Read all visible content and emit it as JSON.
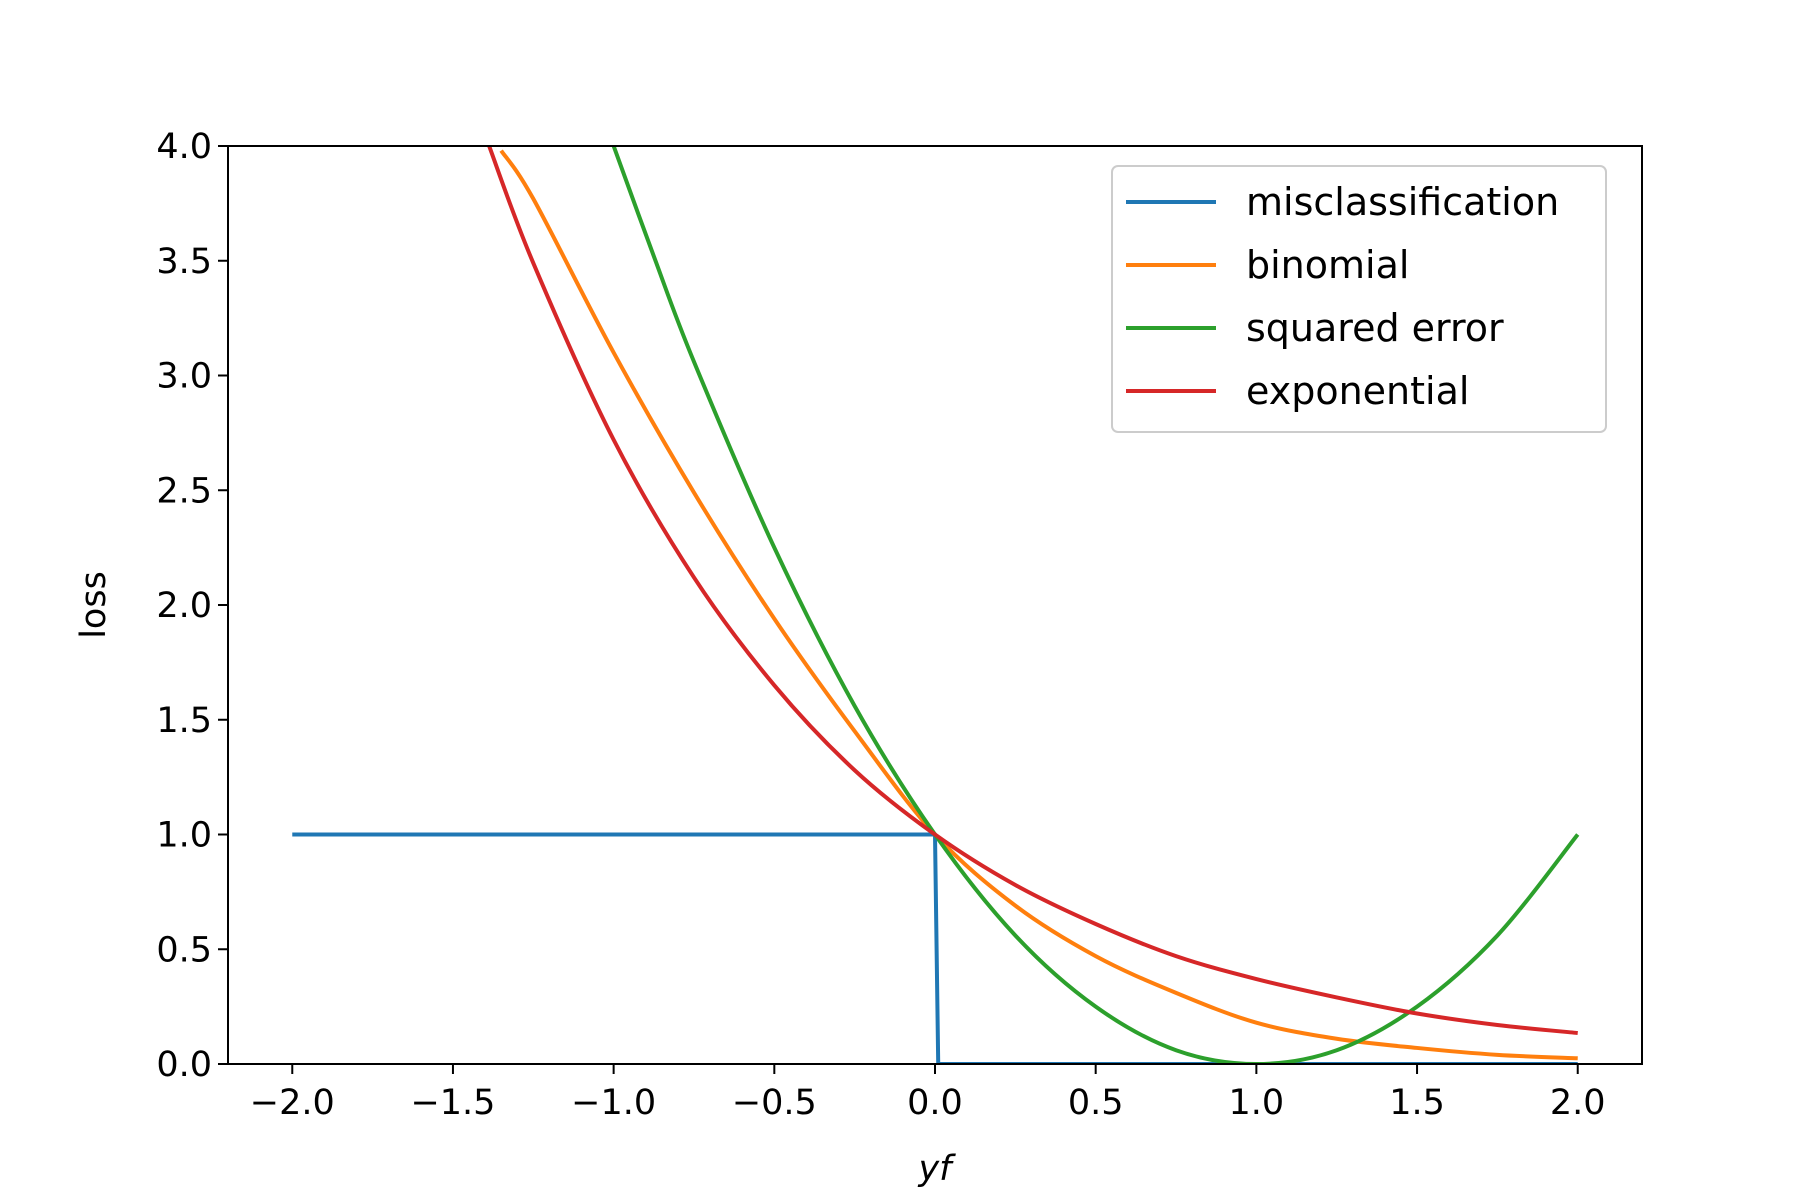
{
  "chart_data": {
    "type": "line",
    "title": "",
    "xlabel": "yf",
    "ylabel": "loss",
    "xlim": [
      -2.2,
      2.2
    ],
    "ylim": [
      0.0,
      4.0
    ],
    "xticks": [
      "−2.0",
      "−1.5",
      "−1.0",
      "−0.5",
      "0.0",
      "0.5",
      "1.0",
      "1.5",
      "2.0"
    ],
    "xtick_values": [
      -2.0,
      -1.5,
      -1.0,
      -0.5,
      0.0,
      0.5,
      1.0,
      1.5,
      2.0
    ],
    "yticks": [
      "0.0",
      "0.5",
      "1.0",
      "1.5",
      "2.0",
      "2.5",
      "3.0",
      "3.5",
      "4.0"
    ],
    "ytick_values": [
      0.0,
      0.5,
      1.0,
      1.5,
      2.0,
      2.5,
      3.0,
      3.5,
      4.0
    ],
    "grid": false,
    "legend_position": "top-right",
    "series": [
      {
        "name": "misclassification",
        "color": "#1f77b4",
        "x": [
          -2.0,
          -1.5,
          -1.0,
          -0.5,
          0.0,
          0.01,
          0.5,
          1.0,
          1.5,
          2.0
        ],
        "y": [
          1,
          1,
          1,
          1,
          1,
          0,
          0,
          0,
          0,
          0
        ]
      },
      {
        "name": "binomial",
        "color": "#ff7f0e",
        "x": [
          -1.35,
          -1.25,
          -1.0,
          -0.75,
          -0.5,
          -0.25,
          0.0,
          0.25,
          0.5,
          0.75,
          1.0,
          1.25,
          1.5,
          1.75,
          2.0
        ],
        "y": [
          3.98,
          3.77,
          3.1,
          2.49,
          1.94,
          1.45,
          1.0,
          0.69,
          0.47,
          0.31,
          0.18,
          0.11,
          0.07,
          0.04,
          0.025
        ]
      },
      {
        "name": "squared error",
        "color": "#2ca02c",
        "x": [
          -1.0,
          -0.875,
          -0.75,
          -0.5,
          -0.25,
          0.0,
          0.25,
          0.5,
          0.75,
          1.0,
          1.25,
          1.5,
          1.75,
          2.0
        ],
        "y": [
          4.0,
          3.52,
          3.06,
          2.25,
          1.56,
          1.0,
          0.56,
          0.25,
          0.06,
          0.0,
          0.06,
          0.25,
          0.56,
          1.0
        ]
      },
      {
        "name": "exponential",
        "color": "#d62728",
        "x": [
          -1.39,
          -1.25,
          -1.0,
          -0.75,
          -0.5,
          -0.25,
          0.0,
          0.25,
          0.5,
          0.75,
          1.0,
          1.25,
          1.5,
          1.75,
          2.0
        ],
        "y": [
          4.01,
          3.49,
          2.72,
          2.12,
          1.65,
          1.28,
          1.0,
          0.78,
          0.61,
          0.47,
          0.37,
          0.29,
          0.22,
          0.17,
          0.135
        ]
      }
    ]
  }
}
